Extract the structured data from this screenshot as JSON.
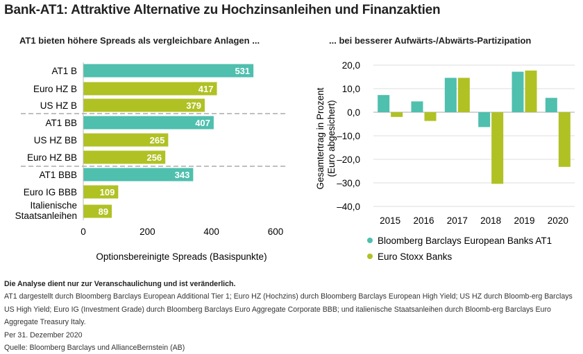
{
  "title": "Bank-AT1: Attraktive Alternative zu Hochzinsanleihen und Finanzaktien",
  "colors": {
    "at1": "#4fbfae",
    "other": "#b0c124"
  },
  "chart_data": [
    {
      "type": "bar",
      "orientation": "horizontal",
      "title": "AT1 bieten höhere Spreads als vergleichbare Anlagen ...",
      "categories": [
        "AT1 B",
        "Euro HZ B",
        "US HZ B",
        "AT1 BB",
        "US HZ BB",
        "Euro HZ BB",
        "AT1 BBB",
        "Euro IG BBB",
        "Italienische Staatsanleihen"
      ],
      "values": [
        531,
        417,
        379,
        407,
        265,
        256,
        343,
        109,
        89
      ],
      "is_at1": [
        true,
        false,
        false,
        true,
        false,
        false,
        true,
        false,
        false
      ],
      "xlabel": "Optionsbereinigte Spreads (Basispunkte)",
      "xlim": [
        0,
        600
      ],
      "xticks": [
        "0",
        "200",
        "400",
        "600"
      ],
      "group_separators": "dashed",
      "grid": false
    },
    {
      "type": "bar",
      "title": "... bei besserer Aufwärts-/Abwärts-Partizipation",
      "categories": [
        "2015",
        "2016",
        "2017",
        "2018",
        "2019",
        "2020"
      ],
      "series": [
        {
          "name": "Bloomberg Barclays European Banks AT1",
          "values": [
            7.3,
            4.6,
            14.6,
            -6.3,
            17.2,
            6.1
          ]
        },
        {
          "name": "Euro Stoxx Banks",
          "values": [
            -2.0,
            -3.7,
            14.6,
            -30.4,
            17.7,
            -23.2
          ]
        }
      ],
      "ylabel": "Gesamtertrag in Prozent (Euro abgesichert)",
      "ylabel_lines": [
        "Gesamtertrag in Prozent",
        "(Euro abgesichert)"
      ],
      "ylim": [
        -40,
        20
      ],
      "yticks": [
        "20,0",
        "10,0",
        "0,0",
        "–10,0",
        "–20,0",
        "–30,0",
        "–40,0"
      ],
      "grid": true,
      "legend": "bottom"
    }
  ],
  "notes": {
    "bold": "Die Analyse dient nur zur Veranschaulichung und ist veränderlich.",
    "lines": [
      "AT1 dargestellt durch Bloomberg Barclays European Additional Tier 1; Euro HZ (Hochzins) durch Bloomberg Barclays European High Yield; US HZ durch Bloomb-erg Barclays US High Yield; Euro IG (Investment Grade) durch Bloomberg Barclays Euro Aggregate Corporate BBB; und italienische Staatsanleihen durch Bloomb-erg Barclays Euro Aggregate Treasury Italy.",
      "Per 31. Dezember 2020",
      "Quelle: Bloomberg Barclays und AllianceBernstein (AB)"
    ]
  }
}
